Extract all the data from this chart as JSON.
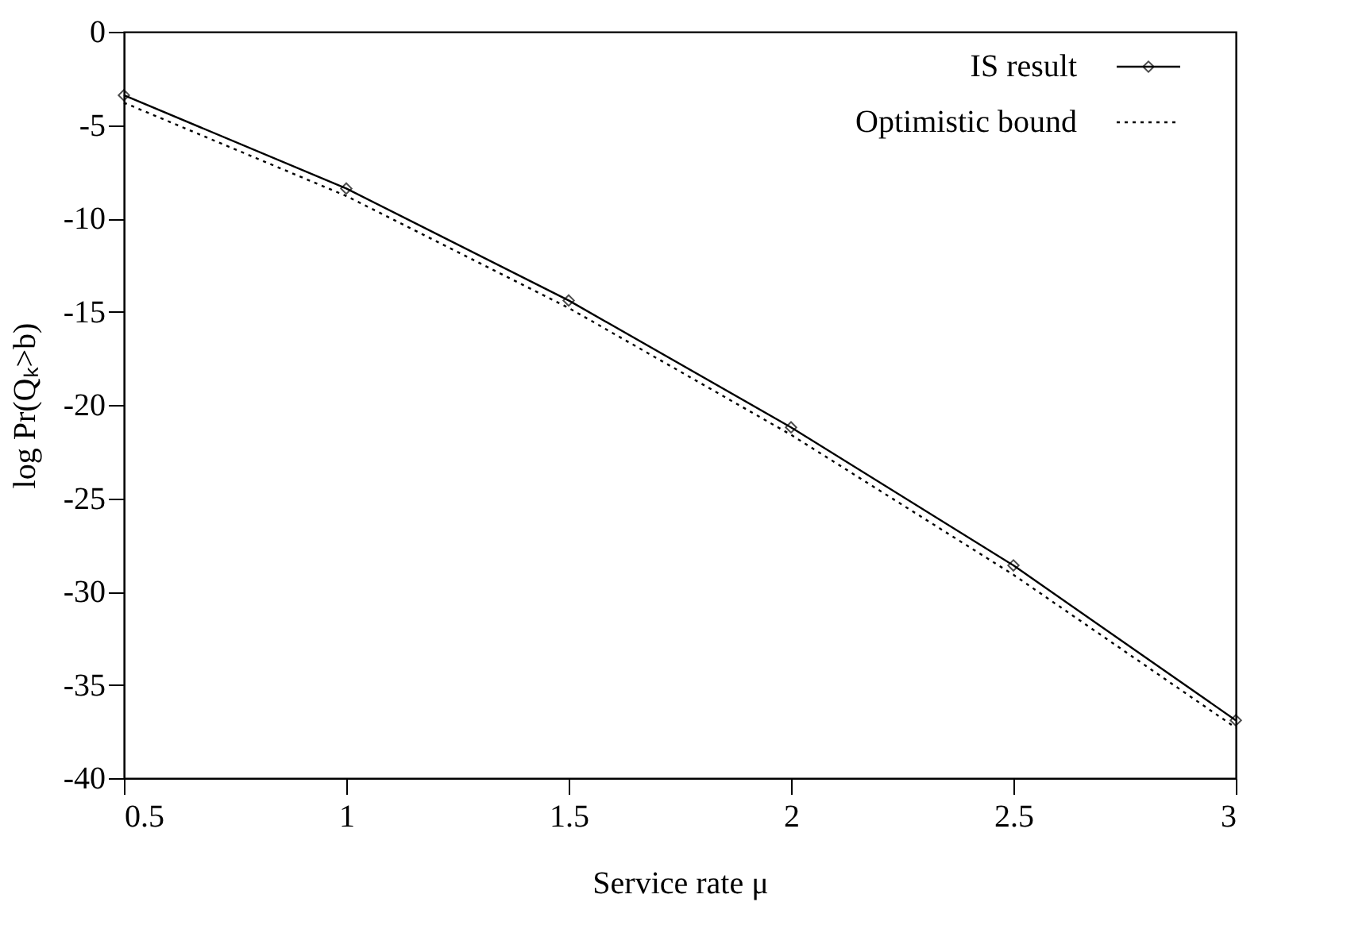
{
  "chart_data": {
    "type": "line",
    "xlabel": "Service rate    μ",
    "ylabel": "log Pr(Qₖ>b)",
    "x": [
      0.5,
      1,
      1.5,
      2,
      2.5,
      3
    ],
    "series": [
      {
        "name": "IS result",
        "color": "#000000",
        "values": [
          -3.4,
          -8.4,
          -14.4,
          -21.2,
          -28.6,
          -36.9
        ],
        "marker": "diamond",
        "line_style": "solid"
      },
      {
        "name": "Optimistic bound",
        "color": "#000000",
        "values": [
          -3.8,
          -8.8,
          -14.8,
          -21.6,
          -29.1,
          -37.3
        ],
        "marker": "none",
        "line_style": "dotted"
      }
    ],
    "xlim": [
      0.5,
      3
    ],
    "xticks": [
      0.5,
      1,
      1.5,
      2,
      2.5,
      3
    ],
    "ylim": [
      -40,
      0
    ],
    "yticks": [
      0,
      -5,
      -10,
      -15,
      -20,
      -25,
      -30,
      -35,
      -40
    ],
    "grid": false,
    "legend": "top right"
  }
}
